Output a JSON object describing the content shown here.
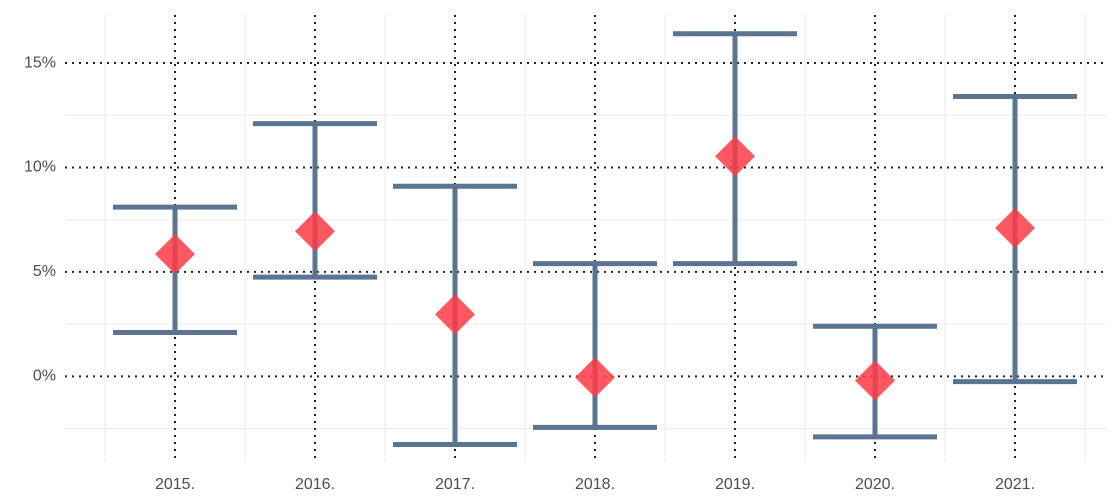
{
  "chart_data": {
    "type": "errorbar",
    "categories": [
      "2015.",
      "2016.",
      "2017.",
      "2018.",
      "2019.",
      "2020.",
      "2021."
    ],
    "values": [
      5.85,
      6.95,
      2.97,
      -0.05,
      10.54,
      -0.2,
      7.1
    ],
    "lower": [
      2.1,
      4.75,
      -3.26,
      -2.44,
      5.4,
      -2.9,
      -0.25
    ],
    "upper": [
      8.1,
      12.1,
      9.1,
      5.4,
      16.4,
      2.4,
      13.4
    ],
    "color": "#ff3b47",
    "bar_color": "#5a7491",
    "ylim": [
      -4.1,
      17.3
    ],
    "yticks": [
      {
        "value": 0,
        "label": "0%"
      },
      {
        "value": 5,
        "label": "5%"
      },
      {
        "value": 10,
        "label": "10%"
      },
      {
        "value": 15,
        "label": "15%"
      }
    ],
    "yminor_ticks": [
      -2.5,
      2.5,
      7.5,
      12.5
    ],
    "grid": true
  }
}
